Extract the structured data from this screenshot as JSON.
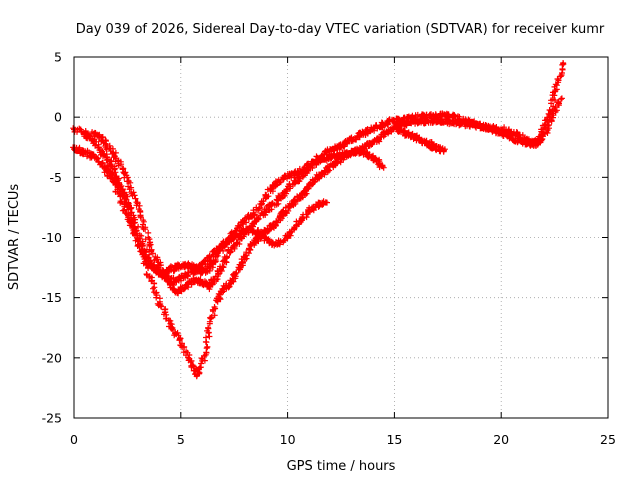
{
  "chart_data": {
    "type": "scatter",
    "title": "Day 039 of 2026, Sidereal Day-to-day VTEC variation (SDTVAR) for receiver kumr",
    "xlabel": "GPS time / hours",
    "ylabel": "SDTVAR / TECUs",
    "xlim": [
      0,
      25
    ],
    "ylim": [
      -25,
      5
    ],
    "xticks": [
      0,
      5,
      10,
      15,
      20,
      25
    ],
    "yticks": [
      -25,
      -20,
      -15,
      -10,
      -5,
      0,
      5
    ],
    "grid": true,
    "marker": "+",
    "color": "#ff0000",
    "series": [
      {
        "x": [
          0.0,
          0.5,
          0.8,
          1.2,
          1.6,
          2.0,
          2.4,
          2.8,
          3.2,
          3.6,
          4.0,
          4.3,
          4.6,
          4.9,
          5.2,
          5.5,
          5.8,
          6.1,
          6.4,
          6.7,
          7.0,
          7.4,
          7.8,
          8.2,
          8.6,
          9.0,
          9.4,
          9.8,
          10.2,
          10.6,
          11.0,
          11.4,
          11.8,
          12.2,
          12.6,
          13.0,
          13.4,
          13.8,
          14.2,
          14.6,
          15.0,
          15.4,
          15.8,
          16.2,
          16.6,
          17.0,
          17.4,
          17.8,
          18.2,
          18.6,
          19.0,
          19.4,
          19.8,
          20.2,
          20.6,
          21.0,
          21.4,
          21.7,
          22.0,
          22.3,
          22.6,
          22.9
        ],
        "y": [
          -1.0,
          -1.3,
          -1.8,
          -2.6,
          -3.5,
          -4.8,
          -6.5,
          -8.5,
          -10.6,
          -12.2,
          -13.0,
          -12.9,
          -12.6,
          -12.4,
          -12.3,
          -12.4,
          -12.7,
          -12.9,
          -12.4,
          -11.5,
          -10.7,
          -9.8,
          -9.0,
          -8.3,
          -7.6,
          -6.5,
          -5.7,
          -5.0,
          -4.8,
          -4.5,
          -4.0,
          -3.5,
          -3.0,
          -2.6,
          -2.3,
          -1.9,
          -1.5,
          -1.1,
          -0.8,
          -0.5,
          -0.3,
          -0.2,
          -0.1,
          0.0,
          0.1,
          0.1,
          0.2,
          0.0,
          -0.3,
          -0.5,
          -0.7,
          -0.9,
          -1.2,
          -1.5,
          -1.8,
          -2.0,
          -2.2,
          -2.0,
          -1.0,
          0.5,
          2.5,
          4.5
        ]
      },
      {
        "x": [
          0.9,
          1.3,
          1.7,
          2.1,
          2.5,
          2.9,
          3.3,
          3.7,
          4.1,
          4.5,
          4.8,
          5.1,
          5.4,
          5.7,
          6.0,
          6.3,
          6.6,
          6.9,
          7.2,
          7.6,
          8.0,
          8.4,
          8.8,
          9.2,
          9.6,
          10.0,
          10.4,
          10.8,
          11.2,
          11.6,
          12.0,
          12.4,
          12.8,
          13.2,
          13.6,
          14.0,
          14.4,
          14.8,
          15.2,
          15.6,
          16.0,
          16.4,
          16.8,
          17.2,
          17.6,
          18.0,
          18.4,
          18.8,
          19.2,
          19.6,
          20.0,
          20.4,
          20.8,
          21.2,
          21.6,
          22.0,
          22.4,
          22.8
        ],
        "y": [
          -1.2,
          -1.8,
          -2.7,
          -3.8,
          -5.2,
          -7.0,
          -9.2,
          -11.3,
          -12.8,
          -13.8,
          -14.5,
          -14.2,
          -13.8,
          -13.5,
          -13.7,
          -14.1,
          -13.5,
          -12.5,
          -11.4,
          -10.5,
          -9.6,
          -8.8,
          -8.1,
          -7.5,
          -6.8,
          -6.0,
          -5.3,
          -4.6,
          -4.0,
          -3.6,
          -3.3,
          -3.1,
          -3.0,
          -2.8,
          -2.5,
          -2.1,
          -1.6,
          -1.1,
          -0.7,
          -0.5,
          -0.4,
          -0.4,
          -0.3,
          -0.3,
          -0.4,
          -0.5,
          -0.6,
          -0.7,
          -0.8,
          -0.9,
          -1.0,
          -1.2,
          -1.5,
          -1.9,
          -2.3,
          -1.5,
          0.0,
          1.5
        ]
      },
      {
        "x": [
          1.5,
          1.9,
          2.3,
          2.7,
          3.1,
          3.5,
          3.9,
          4.3,
          4.7,
          5.1,
          5.5,
          5.8,
          6.1,
          6.4,
          6.7,
          7.0,
          7.3,
          7.6,
          7.9,
          8.2,
          8.5,
          8.8,
          9.1,
          9.4,
          9.7,
          10.0,
          10.3,
          10.6,
          10.9,
          11.2,
          11.5,
          11.8,
          12.1,
          12.4,
          12.7,
          13.0,
          13.3,
          13.6,
          13.9,
          14.2,
          14.5
        ],
        "y": [
          -4.0,
          -5.0,
          -6.6,
          -8.6,
          -10.9,
          -13.0,
          -15.0,
          -16.5,
          -17.8,
          -19.0,
          -20.5,
          -21.5,
          -19.8,
          -17.2,
          -15.3,
          -14.3,
          -13.8,
          -13.0,
          -12.0,
          -11.0,
          -10.2,
          -9.8,
          -9.4,
          -8.9,
          -8.2,
          -7.6,
          -7.1,
          -6.6,
          -6.0,
          -5.4,
          -4.9,
          -4.4,
          -4.0,
          -3.6,
          -3.2,
          -2.9,
          -2.8,
          -3.0,
          -3.3,
          -3.7,
          -4.2
        ]
      },
      {
        "x": [
          0.0,
          0.3,
          0.6,
          1.0,
          1.4,
          1.8,
          2.2,
          2.6,
          3.0,
          3.4,
          3.8,
          4.2,
          4.6,
          5.0,
          5.4,
          5.8,
          6.2,
          6.6,
          7.0,
          7.4,
          7.8,
          8.2,
          8.6,
          9.0,
          9.4,
          9.8,
          10.2,
          10.6,
          11.0,
          11.4,
          11.8
        ],
        "y": [
          -2.6,
          -2.8,
          -3.0,
          -3.4,
          -4.2,
          -5.3,
          -6.8,
          -8.7,
          -10.4,
          -11.8,
          -12.6,
          -13.3,
          -13.6,
          -13.4,
          -13.0,
          -12.5,
          -12.0,
          -11.2,
          -10.5,
          -10.0,
          -9.6,
          -9.4,
          -9.5,
          -10.2,
          -10.6,
          -10.3,
          -9.5,
          -8.6,
          -7.8,
          -7.3,
          -7.1
        ]
      },
      {
        "x": [
          15.2,
          15.5,
          15.8,
          16.1,
          16.4,
          16.7,
          17.0,
          17.3
        ],
        "y": [
          -1.0,
          -1.3,
          -1.5,
          -1.8,
          -2.1,
          -2.3,
          -2.6,
          -2.8
        ]
      }
    ]
  }
}
